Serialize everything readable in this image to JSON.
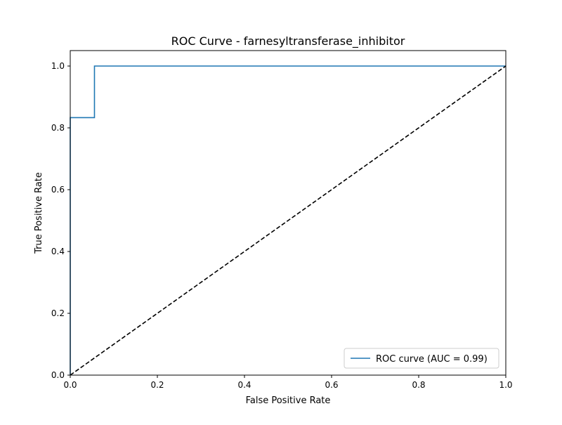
{
  "chart_data": {
    "type": "line",
    "title": "ROC Curve - farnesyltransferase_inhibitor",
    "xlabel": "False Positive Rate",
    "ylabel": "True Positive Rate",
    "xlim": [
      0.0,
      1.0
    ],
    "ylim": [
      0.0,
      1.05
    ],
    "xticks": [
      0.0,
      0.2,
      0.4,
      0.6,
      0.8,
      1.0
    ],
    "yticks": [
      0.0,
      0.2,
      0.4,
      0.6,
      0.8,
      1.0
    ],
    "tick_labels_x": [
      "0.0",
      "0.2",
      "0.4",
      "0.6",
      "0.8",
      "1.0"
    ],
    "tick_labels_y": [
      "0.0",
      "0.2",
      "0.4",
      "0.6",
      "0.8",
      "1.0"
    ],
    "grid": false,
    "legend_position": "lower-right",
    "series": [
      {
        "name": "ROC curve (AUC = 0.99)",
        "color": "#1f77b4",
        "style": "solid",
        "x": [
          0.0,
          0.0,
          0.0,
          0.0556,
          0.0556,
          1.0
        ],
        "y": [
          0.0,
          0.667,
          0.833,
          0.833,
          1.0,
          1.0
        ]
      },
      {
        "name": "",
        "color": "#000000",
        "style": "dashed",
        "x": [
          0.0,
          1.0
        ],
        "y": [
          0.0,
          1.0
        ]
      }
    ]
  }
}
